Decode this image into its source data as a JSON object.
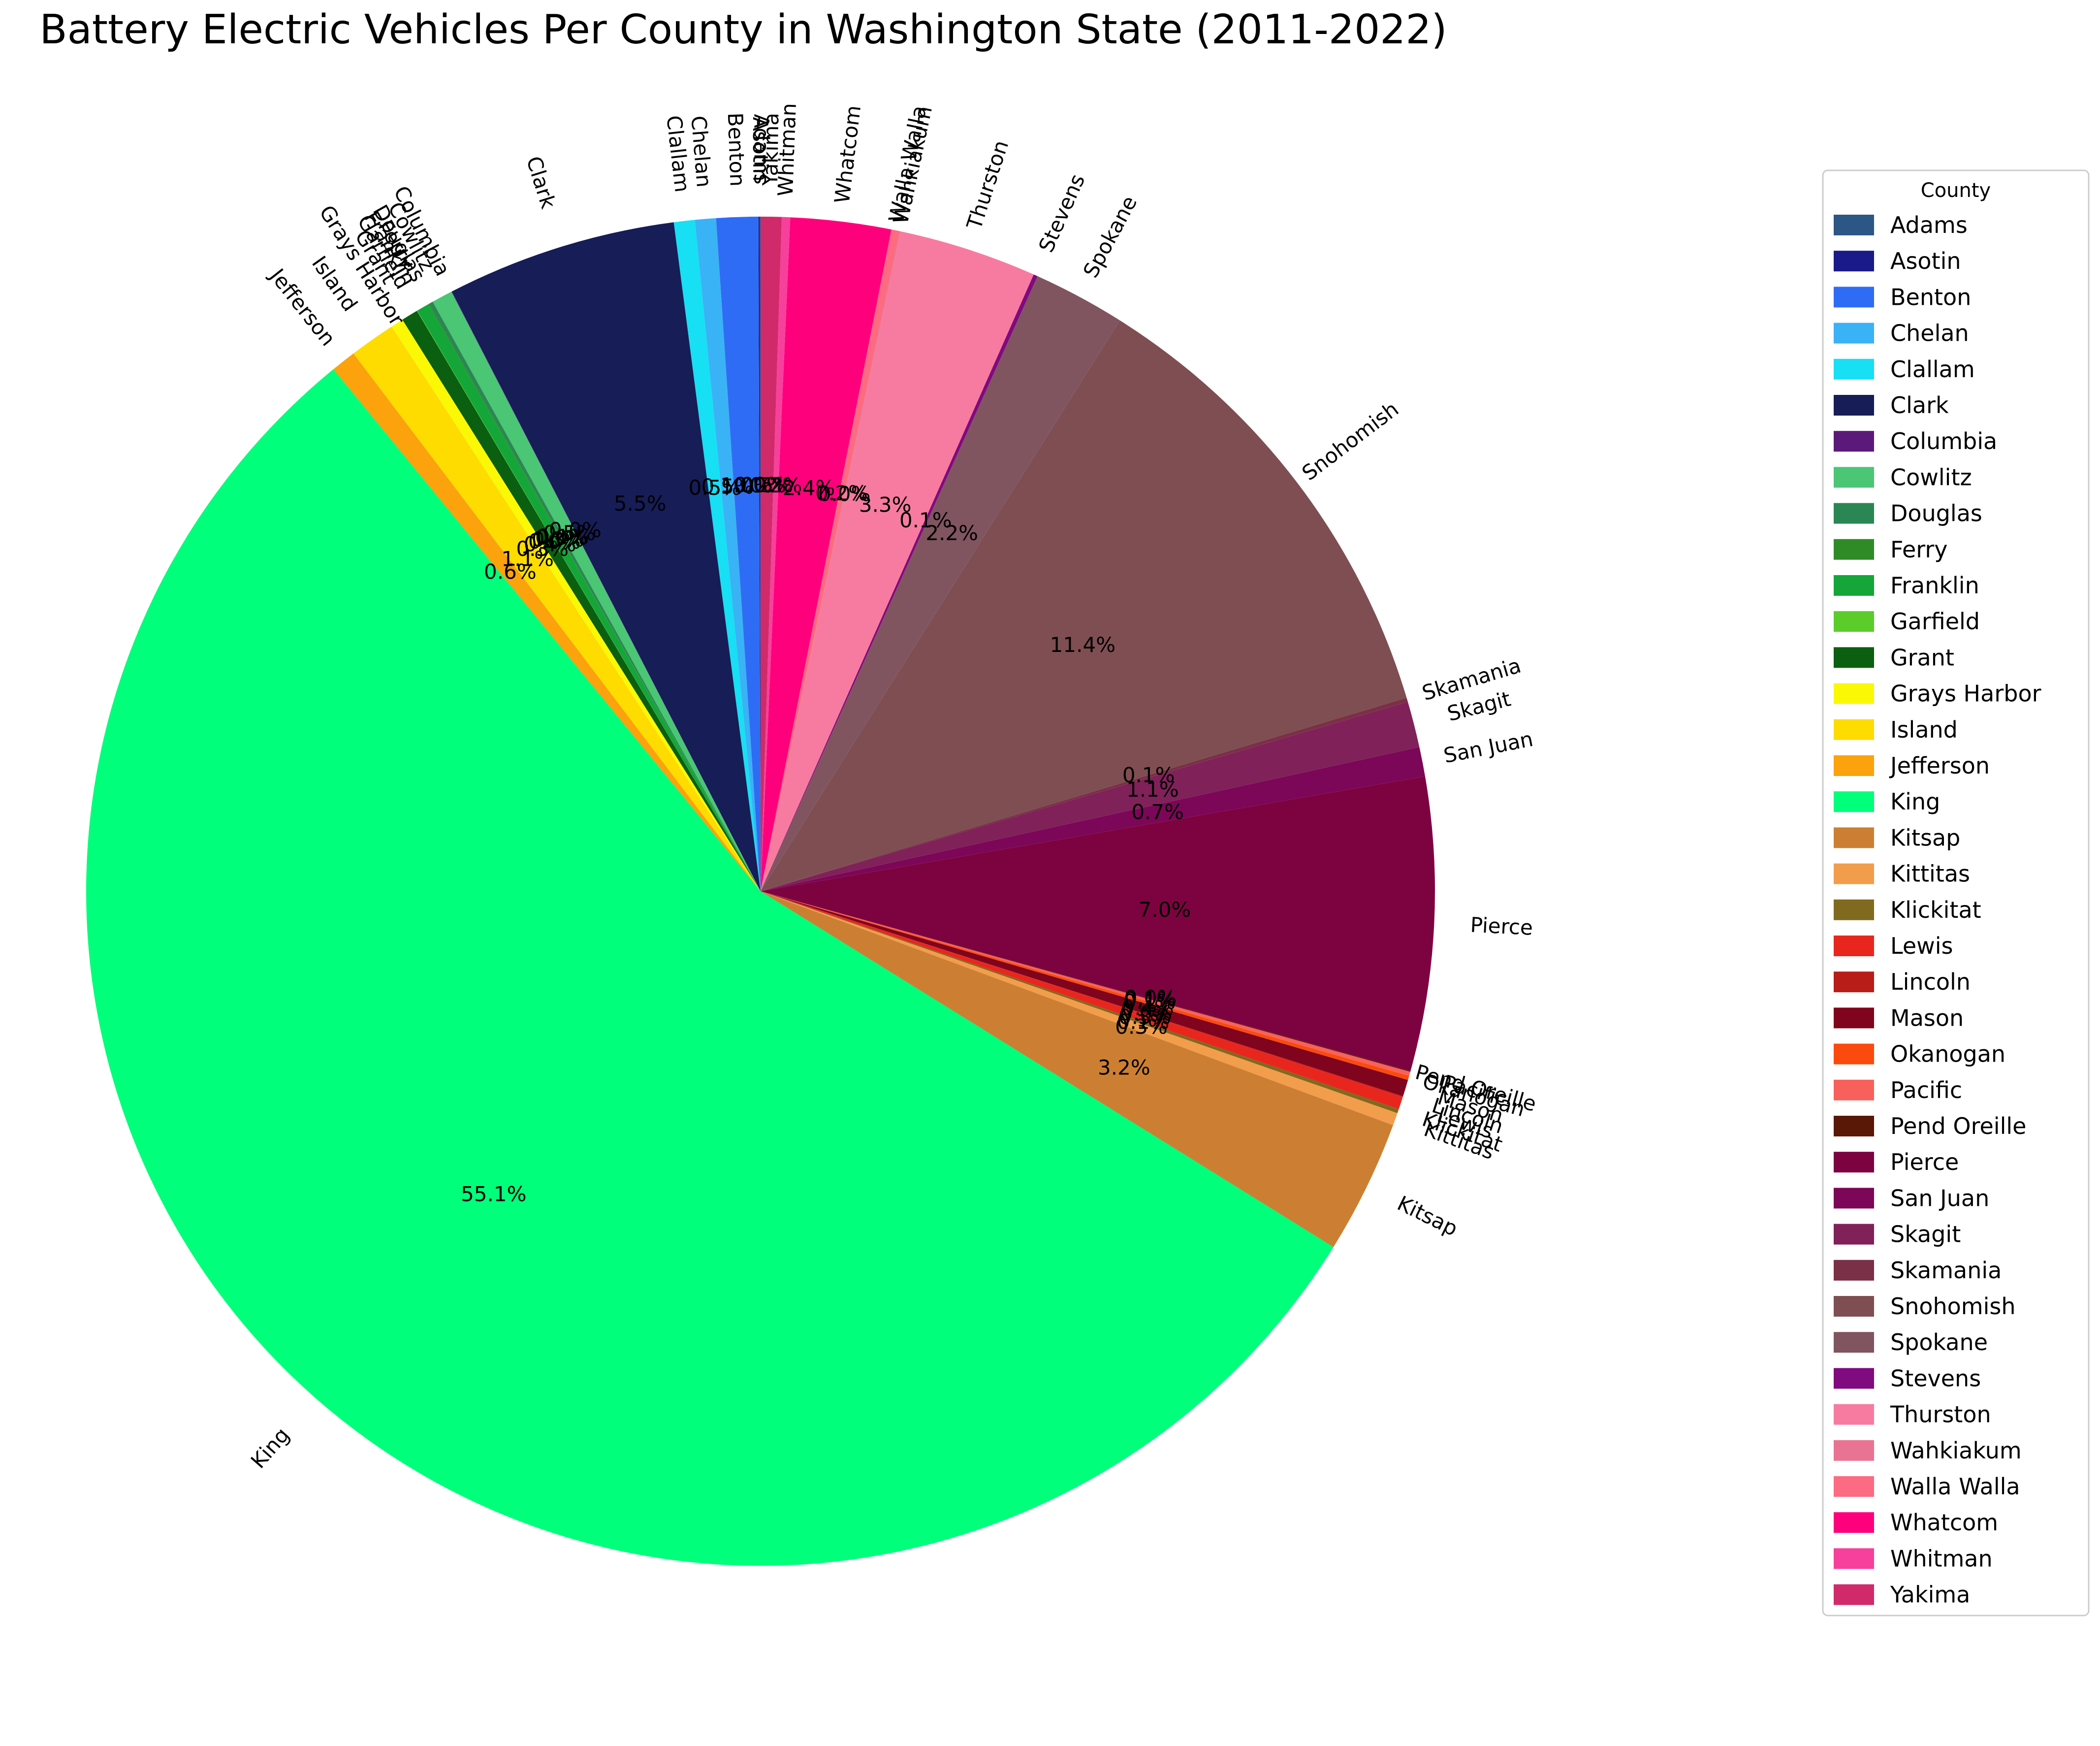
{
  "chart_data": {
    "type": "pie",
    "title": "Battery Electric Vehicles Per County in Washington State (2011-2022)",
    "legend_title": "County",
    "legend_position": "right",
    "start_angle_deg": 90,
    "direction": "counterclockwise",
    "slices": [
      {
        "label": "Adams",
        "value": 0.02,
        "pct_text": "0.0%",
        "color": "#2c5685"
      },
      {
        "label": "Asotin",
        "value": 0.03,
        "pct_text": "0.0%",
        "color": "#1a1a8a"
      },
      {
        "label": "Benton",
        "value": 1.0,
        "pct_text": "1.0%",
        "color": "#2f6cf5"
      },
      {
        "label": "Chelan",
        "value": 0.5,
        "pct_text": "0.5%",
        "color": "#3ab2f6"
      },
      {
        "label": "Clallam",
        "value": 0.5,
        "pct_text": "0.5%",
        "color": "#17dff4"
      },
      {
        "label": "Clark",
        "value": 5.5,
        "pct_text": "5.5%",
        "color": "#161d57"
      },
      {
        "label": "Columbia",
        "value": 0.01,
        "pct_text": "0.0%",
        "color": "#5b1a7a"
      },
      {
        "label": "Cowlitz",
        "value": 0.5,
        "pct_text": "0.5%",
        "color": "#4ac675"
      },
      {
        "label": "Douglas",
        "value": 0.1,
        "pct_text": "0.1%",
        "color": "#2a8753"
      },
      {
        "label": "Ferry",
        "value": 0.02,
        "pct_text": "0.0%",
        "color": "#2f8b26"
      },
      {
        "label": "Franklin",
        "value": 0.3,
        "pct_text": "0.3%",
        "color": "#14a639"
      },
      {
        "label": "Garfield",
        "value": 0.01,
        "pct_text": "0.0%",
        "color": "#5ccc2a"
      },
      {
        "label": "Grant",
        "value": 0.4,
        "pct_text": "0.4%",
        "color": "#0b5f10"
      },
      {
        "label": "Grays Harbor",
        "value": 0.3,
        "pct_text": "0.3%",
        "color": "#fbf806"
      },
      {
        "label": "Island",
        "value": 1.1,
        "pct_text": "1.1%",
        "color": "#fedc00"
      },
      {
        "label": "Jefferson",
        "value": 0.6,
        "pct_text": "0.6%",
        "color": "#fba20d"
      },
      {
        "label": "King",
        "value": 55.1,
        "pct_text": "55.1%",
        "color": "#00ff7a"
      },
      {
        "label": "Kitsap",
        "value": 3.2,
        "pct_text": "3.2%",
        "color": "#cc7f33"
      },
      {
        "label": "Kittitas",
        "value": 0.3,
        "pct_text": "0.3%",
        "color": "#f29d4b"
      },
      {
        "label": "Klickitat",
        "value": 0.1,
        "pct_text": "0.1%",
        "color": "#7f6a1f"
      },
      {
        "label": "Lewis",
        "value": 0.3,
        "pct_text": "0.3%",
        "color": "#e8261e"
      },
      {
        "label": "Lincoln",
        "value": 0.02,
        "pct_text": "0.0%",
        "color": "#b81d17"
      },
      {
        "label": "Mason",
        "value": 0.4,
        "pct_text": "0.4%",
        "color": "#80041d"
      },
      {
        "label": "Okanogan",
        "value": 0.1,
        "pct_text": "0.1%",
        "color": "#fb4a0e"
      },
      {
        "label": "Pacific",
        "value": 0.1,
        "pct_text": "0.1%",
        "color": "#f8615b"
      },
      {
        "label": "Pend Oreille",
        "value": 0.02,
        "pct_text": "0.0%",
        "color": "#591706"
      },
      {
        "label": "Pierce",
        "value": 7.0,
        "pct_text": "7.0%",
        "color": "#7d0340"
      },
      {
        "label": "San Juan",
        "value": 0.7,
        "pct_text": "0.7%",
        "color": "#7c0657"
      },
      {
        "label": "Skagit",
        "value": 1.1,
        "pct_text": "1.1%",
        "color": "#80215a"
      },
      {
        "label": "Skamania",
        "value": 0.1,
        "pct_text": "0.1%",
        "color": "#7a3047"
      },
      {
        "label": "Snohomish",
        "value": 11.4,
        "pct_text": "11.4%",
        "color": "#7f4e52"
      },
      {
        "label": "Spokane",
        "value": 2.2,
        "pct_text": "2.2%",
        "color": "#805560"
      },
      {
        "label": "Stevens",
        "value": 0.1,
        "pct_text": "0.1%",
        "color": "#800a7f"
      },
      {
        "label": "Thurston",
        "value": 3.3,
        "pct_text": "3.3%",
        "color": "#f77ba1"
      },
      {
        "label": "Wahkiakum",
        "value": 0.02,
        "pct_text": "0.0%",
        "color": "#e97393"
      },
      {
        "label": "Walla Walla",
        "value": 0.2,
        "pct_text": "0.2%",
        "color": "#fc6b82"
      },
      {
        "label": "Whatcom",
        "value": 2.4,
        "pct_text": "2.4%",
        "color": "#ff007d"
      },
      {
        "label": "Whitman",
        "value": 0.2,
        "pct_text": "0.2%",
        "color": "#f7409c"
      },
      {
        "label": "Yakima",
        "value": 0.5,
        "pct_text": "0.5%",
        "color": "#d02a6b"
      }
    ]
  }
}
